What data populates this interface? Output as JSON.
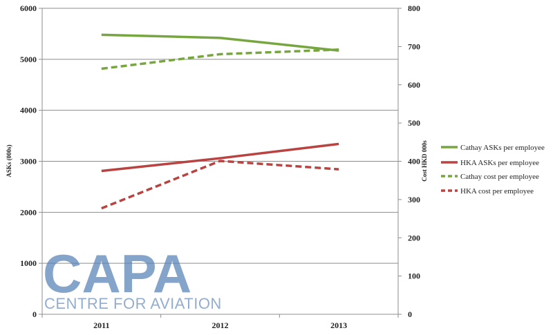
{
  "chart_data": {
    "type": "line",
    "categories": [
      "2011",
      "2012",
      "2013"
    ],
    "ylabel": "ASKs (000s)",
    "y2label": "Cost HKD 000s",
    "ylim": [
      0,
      6000
    ],
    "y2lim": [
      0,
      800
    ],
    "yticks": [
      "0",
      "1000",
      "2000",
      "3000",
      "4000",
      "5000",
      "6000"
    ],
    "y2ticks": [
      "0",
      "100",
      "200",
      "300",
      "400",
      "500",
      "600",
      "700",
      "800"
    ],
    "grid": true,
    "legend_position": "right",
    "series": [
      {
        "name": "Cathay ASKs per employee",
        "axis": "left",
        "style": "solid",
        "color": "#77a640",
        "values": [
          5480,
          5420,
          5170
        ]
      },
      {
        "name": "HKA ASKs per employee",
        "axis": "left",
        "style": "solid",
        "color": "#b84340",
        "values": [
          2810,
          3060,
          3340
        ]
      },
      {
        "name": "Cathay cost per employee",
        "axis": "right",
        "style": "dashed",
        "color": "#77a640",
        "values": [
          642,
          680,
          692
        ]
      },
      {
        "name": "HKA cost per employee",
        "axis": "right",
        "style": "dashed",
        "color": "#b84340",
        "values": [
          277,
          401,
          379
        ]
      }
    ]
  },
  "watermark": {
    "line1": "CAPA",
    "line2": "CENTRE FOR AVIATION"
  }
}
